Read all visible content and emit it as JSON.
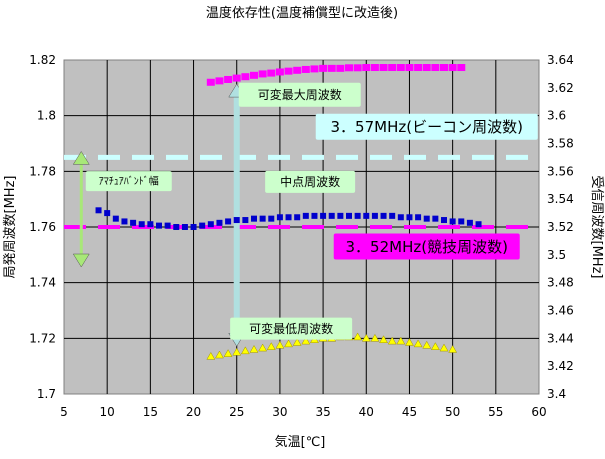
{
  "chart_data": {
    "type": "scatter",
    "title": "温度依存性(温度補償型に改造後)",
    "xlabel": "気温[℃]",
    "ylabel_left": "局発周波数[MHz]",
    "ylabel_right": "受信周波数[MHz]",
    "xlim": [
      5,
      60
    ],
    "ylim_left": [
      1.7,
      1.82
    ],
    "ylim_right": [
      3.4,
      3.64
    ],
    "x_ticks": [
      "5",
      "10",
      "15",
      "20",
      "25",
      "30",
      "35",
      "40",
      "45",
      "50",
      "55",
      "60"
    ],
    "y_ticks_left": [
      "1.7",
      "1.72",
      "1.74",
      "1.76",
      "1.78",
      "1.8",
      "1.82"
    ],
    "y_ticks_right": [
      "3.4",
      "3.42",
      "3.44",
      "3.46",
      "3.48",
      "3.5",
      "3.52",
      "3.54",
      "3.56",
      "3.58",
      "3.6",
      "3.62",
      "3.64"
    ],
    "grid": true,
    "colors": {
      "plot_bg": "#c0c0c0",
      "max": "#ff00ff",
      "mid": "#0000cc",
      "min": "#ffff00",
      "beacon_line": "#ccffff",
      "band_line": "#ff00ff",
      "callout": "#ccffcc",
      "arrow": "#b0e0e0"
    },
    "series": [
      {
        "key": "max",
        "x": [
          22,
          23,
          24,
          25,
          26,
          27,
          28,
          29,
          30,
          31,
          32,
          33,
          34,
          35,
          36,
          37,
          38,
          39,
          40,
          41,
          42,
          43,
          44,
          45,
          46,
          47,
          48,
          49,
          50,
          51
        ],
        "y": [
          1.812,
          1.8125,
          1.813,
          1.8135,
          1.814,
          1.8145,
          1.815,
          1.8153,
          1.8157,
          1.816,
          1.8163,
          1.8166,
          1.8168,
          1.817,
          1.817,
          1.817,
          1.8172,
          1.8172,
          1.8173,
          1.8173,
          1.8173,
          1.8173,
          1.8173,
          1.8173,
          1.8173,
          1.8173,
          1.8173,
          1.8173,
          1.8173,
          1.8173
        ]
      },
      {
        "key": "mid",
        "x": [
          9,
          10,
          11,
          12,
          13,
          14,
          15,
          16,
          17,
          18,
          19,
          20,
          21,
          22,
          23,
          24,
          25,
          26,
          27,
          28,
          29,
          30,
          31,
          32,
          33,
          34,
          35,
          36,
          37,
          38,
          39,
          40,
          41,
          42,
          43,
          44,
          45,
          46,
          47,
          48,
          49,
          50,
          51,
          52,
          53
        ],
        "y": [
          1.766,
          1.765,
          1.763,
          1.762,
          1.7615,
          1.761,
          1.761,
          1.7605,
          1.7605,
          1.76,
          1.76,
          1.76,
          1.7605,
          1.761,
          1.7615,
          1.762,
          1.7625,
          1.7625,
          1.763,
          1.763,
          1.763,
          1.7635,
          1.7635,
          1.7635,
          1.764,
          1.764,
          1.764,
          1.764,
          1.764,
          1.764,
          1.764,
          1.764,
          1.764,
          1.764,
          1.764,
          1.7635,
          1.7635,
          1.7635,
          1.763,
          1.763,
          1.7625,
          1.762,
          1.762,
          1.7615,
          1.761
        ]
      },
      {
        "key": "min",
        "x": [
          22,
          23,
          24,
          25,
          26,
          27,
          28,
          29,
          30,
          31,
          32,
          33,
          34,
          35,
          36,
          37,
          38,
          39,
          40,
          41,
          42,
          43,
          44,
          45,
          46,
          47,
          48,
          49,
          50
        ],
        "y": [
          1.7135,
          1.714,
          1.7145,
          1.715,
          1.7155,
          1.716,
          1.7165,
          1.717,
          1.7175,
          1.718,
          1.7185,
          1.719,
          1.7195,
          1.72,
          1.72,
          1.7205,
          1.7205,
          1.7205,
          1.72,
          1.72,
          1.7195,
          1.719,
          1.719,
          1.7185,
          1.718,
          1.7175,
          1.717,
          1.7165,
          1.716
        ]
      }
    ],
    "reference_lines": [
      {
        "key": "beacon",
        "y_right": 3.57,
        "x_start": 5,
        "x_end": 60,
        "label": "3．57MHz(ビーコン周波数)"
      },
      {
        "key": "band",
        "y_right": 3.52,
        "x_start": 5,
        "x_end": 60,
        "label": "3．52MHz(競技周波数)"
      }
    ],
    "annotations": {
      "max_label": "可変最大周波数",
      "mid_label": "中点周波数",
      "min_label": "可変最低周波数",
      "band_label": "ｱﾏﾁｭｱﾊﾞﾝﾄﾞ幅"
    }
  }
}
